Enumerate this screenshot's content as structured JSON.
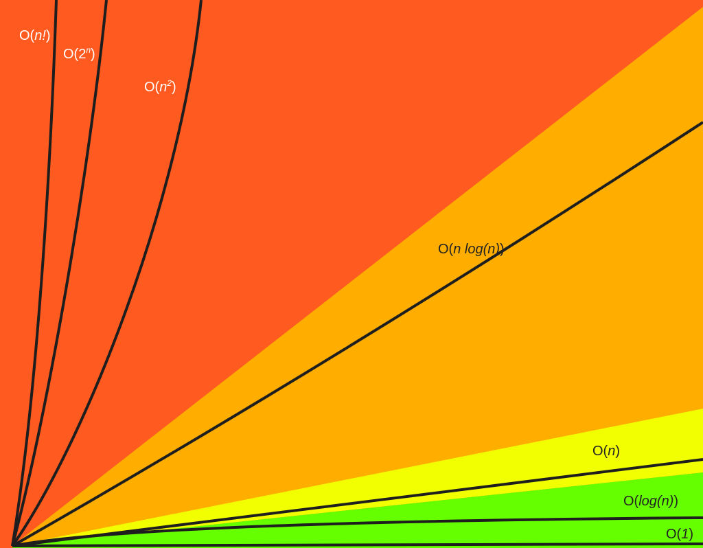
{
  "labels": [
    {
      "segments": [
        [
          "O(",
          "normal"
        ],
        [
          "n!",
          "italic"
        ],
        [
          ")",
          "normal"
        ]
      ],
      "color": "#ffffff"
    },
    {
      "segments": [
        [
          "O(2",
          "normal"
        ],
        [
          "n",
          "sup"
        ],
        [
          ")",
          "normal"
        ]
      ],
      "color": "#ffffff"
    },
    {
      "segments": [
        [
          "O(",
          "normal"
        ],
        [
          "n",
          "italic"
        ],
        [
          "2",
          "sup"
        ],
        [
          ")",
          "normal"
        ]
      ],
      "color": "#ffffff"
    },
    {
      "segments": [
        [
          "O(",
          "normal"
        ],
        [
          "n log(n)",
          "italic"
        ],
        [
          ")",
          "normal"
        ]
      ],
      "color": "#222222"
    },
    {
      "segments": [
        [
          "O(",
          "normal"
        ],
        [
          "n",
          "italic"
        ],
        [
          ")",
          "normal"
        ]
      ],
      "color": "#222222"
    },
    {
      "segments": [
        [
          "O(",
          "normal"
        ],
        [
          "log(n)",
          "italic"
        ],
        [
          ")",
          "normal"
        ]
      ],
      "color": "#222222"
    },
    {
      "segments": [
        [
          "O(",
          "normal"
        ],
        [
          "1",
          "italic"
        ],
        [
          ")",
          "normal"
        ]
      ],
      "color": "#222222"
    }
  ]
}
